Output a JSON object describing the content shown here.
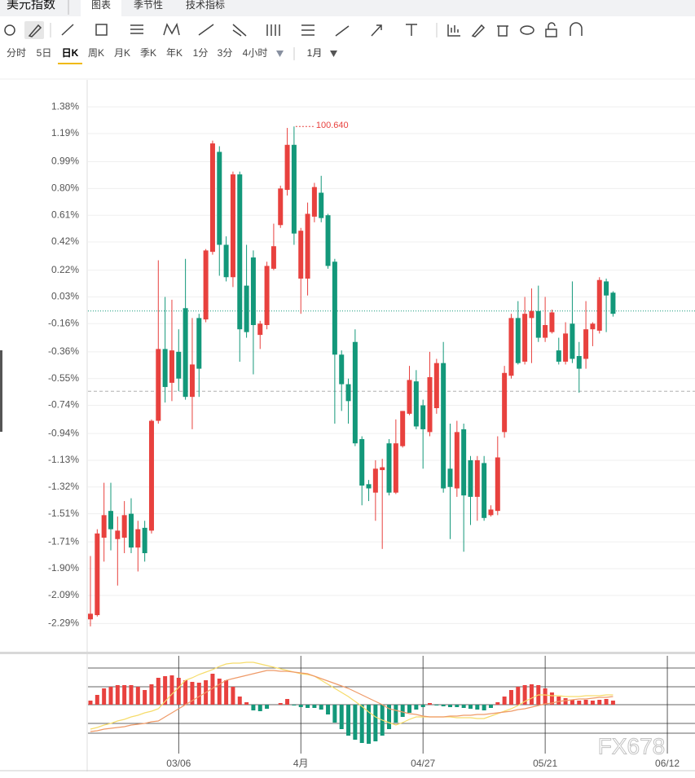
{
  "header": {
    "title": "美元指数",
    "tabs": [
      "图表",
      "季节性",
      "技术指标"
    ],
    "active_tab": 0
  },
  "periods": [
    "分时",
    "5日",
    "日K",
    "周K",
    "月K",
    "季K",
    "年K",
    "1分",
    "3分",
    "4小时"
  ],
  "active_period": 2,
  "range_selector": "1月",
  "watermark": "FX678",
  "chart_data": [
    {
      "type": "candlestick",
      "up_color": "#e8413e",
      "down_color": "#13987a",
      "ylim": [
        -2.49,
        1.56
      ],
      "yticks": [
        {
          "value": 1.38,
          "label": "1.38%"
        },
        {
          "value": 1.19,
          "label": "1.19%"
        },
        {
          "value": 0.99,
          "label": "0.99%"
        },
        {
          "value": 0.8,
          "label": "0.80%"
        },
        {
          "value": 0.61,
          "label": "0.61%"
        },
        {
          "value": 0.42,
          "label": "0.42%"
        },
        {
          "value": 0.22,
          "label": "0.22%"
        },
        {
          "value": 0.03,
          "label": "0.03%"
        },
        {
          "value": -0.16,
          "label": "-0.16%"
        },
        {
          "value": -0.36,
          "label": "-0.36%"
        },
        {
          "value": -0.55,
          "label": "-0.55%"
        },
        {
          "value": -0.74,
          "label": "-0.74%"
        },
        {
          "value": -0.94,
          "label": "-0.94%"
        },
        {
          "value": -1.13,
          "label": "-1.13%"
        },
        {
          "value": -1.32,
          "label": "-1.32%"
        },
        {
          "value": -1.51,
          "label": "-1.51%"
        },
        {
          "value": -1.71,
          "label": "-1.71%"
        },
        {
          "value": -1.9,
          "label": "-1.90%"
        },
        {
          "value": -2.09,
          "label": "-2.09%"
        },
        {
          "value": -2.29,
          "label": "-2.29%"
        }
      ],
      "grid": true,
      "hlines": [
        {
          "value": -0.07,
          "color": "#13987a"
        },
        {
          "value": -0.64,
          "color": "#b0b0b0"
        }
      ],
      "annotation": {
        "label": "100.640",
        "color": "#e8413e"
      },
      "open": [
        -2.26,
        -2.23,
        -1.68,
        -1.49,
        -1.69,
        -1.68,
        -1.51,
        -1.75,
        -1.61,
        -1.63,
        -0.85,
        -0.34,
        -0.58,
        -0.36,
        -0.05,
        -0.68,
        -0.12,
        -0.13,
        0.35,
        1.06,
        0.4,
        0.17,
        0.9,
        0.11,
        0.31,
        -0.24,
        -0.17,
        0.23,
        0.54,
        0.79,
        1.11,
        0.16,
        0.16,
        0.6,
        0.77,
        0.61,
        0.28,
        -0.38,
        -0.59,
        -0.29,
        -0.98,
        -1.3,
        -1.36,
        -1.2,
        -1.01,
        -1.36,
        -1.03,
        -0.8,
        -0.57,
        -0.74,
        -0.93,
        -0.76,
        -0.44,
        -1.19,
        -1.33,
        -0.91,
        -1.13,
        -1.39,
        -1.15,
        -1.52,
        -1.49,
        -0.93,
        -0.53,
        -0.12,
        -0.43,
        -0.12,
        -0.07,
        -0.26,
        -0.22,
        -0.35,
        -0.43,
        -0.16,
        -0.39,
        -0.41,
        -0.2,
        -0.21,
        0.14,
        0.06,
        null,
        null,
        null,
        null,
        null,
        null,
        null,
        null
      ],
      "high": [
        -1.81,
        -1.62,
        -1.29,
        -1.29,
        -1.53,
        -1.42,
        -1.4,
        -1.56,
        -1.56,
        -0.84,
        0.29,
        0.03,
        0.01,
        -0.2,
        0.3,
        -0.12,
        -0.09,
        0.37,
        1.14,
        1.1,
        0.46,
        0.92,
        0.92,
        0.4,
        0.36,
        -0.14,
        0.28,
        0.55,
        0.82,
        1.23,
        1.24,
        0.52,
        0.7,
        0.84,
        0.89,
        0.62,
        0.3,
        -0.35,
        -0.55,
        -0.2,
        -0.96,
        -1.27,
        -1.13,
        -1.12,
        -0.98,
        -0.84,
        -0.78,
        -0.46,
        -0.49,
        -0.7,
        -0.36,
        -0.41,
        -0.29,
        -0.87,
        -0.85,
        -0.87,
        -1.1,
        -1.1,
        -1.1,
        -1.45,
        -0.96,
        -0.46,
        -0.09,
        0.0,
        0.03,
        0.09,
        0.11,
        0.03,
        -0.06,
        -0.26,
        -0.15,
        0.14,
        -0.29,
        0.0,
        -0.15,
        0.17,
        0.16,
        0.07,
        null,
        null,
        null,
        null,
        null,
        null,
        null,
        null
      ],
      "low": [
        -2.31,
        -2.24,
        -1.85,
        -1.77,
        -2.02,
        -1.79,
        -1.79,
        -1.92,
        -1.85,
        -1.65,
        -0.87,
        -0.72,
        -0.71,
        -0.64,
        -0.7,
        -0.91,
        -0.68,
        -0.15,
        0.33,
        0.18,
        0.14,
        0.1,
        -0.43,
        -0.26,
        -0.52,
        -0.34,
        -0.2,
        0.22,
        0.52,
        0.75,
        0.4,
        -0.09,
        0.04,
        0.56,
        0.56,
        0.23,
        -0.87,
        -0.78,
        -0.87,
        -1.03,
        -1.45,
        -1.42,
        -1.56,
        -1.76,
        -1.38,
        -1.37,
        -1.04,
        -0.81,
        -0.91,
        -1.19,
        -0.96,
        -0.8,
        -1.36,
        -1.69,
        -1.39,
        -1.78,
        -1.59,
        -1.56,
        -1.56,
        -1.53,
        -1.52,
        -0.97,
        -0.55,
        -0.45,
        -0.45,
        -0.44,
        -0.29,
        -0.29,
        -0.23,
        -0.45,
        -0.45,
        -0.44,
        -0.65,
        -0.48,
        -0.32,
        -0.23,
        -0.22,
        -0.11,
        null,
        null,
        null,
        null,
        null,
        null,
        null,
        null
      ],
      "close": [
        -2.22,
        -1.65,
        -1.52,
        -1.62,
        -1.63,
        -1.52,
        -1.75,
        -1.62,
        -1.79,
        -0.85,
        -0.34,
        -0.61,
        -0.35,
        -0.55,
        -0.68,
        -0.45,
        -0.48,
        0.36,
        1.12,
        0.4,
        0.17,
        0.9,
        -0.2,
        -0.22,
        -0.17,
        -0.16,
        0.25,
        0.39,
        0.8,
        1.11,
        0.48,
        0.5,
        0.62,
        0.81,
        0.59,
        0.25,
        -0.38,
        -0.59,
        -0.71,
        -1.01,
        -1.31,
        -1.33,
        -1.19,
        -1.18,
        -1.36,
        -1.01,
        -0.78,
        -0.56,
        -0.89,
        -0.91,
        -0.54,
        -0.44,
        -1.33,
        -1.32,
        -0.93,
        -1.38,
        -1.39,
        -1.13,
        -1.54,
        -1.48,
        -1.11,
        -0.51,
        -0.12,
        -0.44,
        -0.09,
        -0.07,
        -0.26,
        -0.17,
        -0.08,
        -0.43,
        -0.23,
        -0.41,
        -0.48,
        -0.2,
        -0.16,
        0.15,
        0.04,
        -0.09,
        null,
        null,
        null,
        null,
        null,
        null,
        null,
        null
      ]
    },
    {
      "type": "macd",
      "ylim": [
        -0.55,
        0.55
      ],
      "categories": [
        null,
        null,
        null,
        null,
        null,
        null,
        null,
        null,
        null,
        null,
        null,
        null,
        null,
        "03/06",
        null,
        null,
        null,
        null,
        null,
        null,
        null,
        null,
        null,
        null,
        null,
        null,
        null,
        null,
        null,
        null,
        null,
        "4月",
        null,
        null,
        null,
        null,
        null,
        null,
        null,
        null,
        null,
        null,
        null,
        null,
        null,
        null,
        null,
        null,
        null,
        "04/27",
        null,
        null,
        null,
        null,
        null,
        null,
        null,
        null,
        null,
        null,
        null,
        null,
        null,
        null,
        null,
        null,
        null,
        "05/21",
        null,
        null,
        null,
        null,
        null,
        null,
        null,
        null,
        null,
        null,
        null,
        null,
        null,
        null,
        null,
        null,
        null,
        "06/12"
      ],
      "histogram": {
        "up_color": "#e8413e",
        "down_color": "#13987a",
        "values": [
          0.05,
          0.12,
          0.2,
          0.22,
          0.24,
          0.24,
          0.24,
          0.22,
          0.18,
          0.25,
          0.33,
          0.35,
          0.36,
          0.33,
          0.3,
          0.28,
          0.27,
          0.3,
          0.38,
          0.32,
          0.3,
          0.22,
          0.1,
          0.03,
          -0.07,
          -0.08,
          -0.05,
          0.0,
          0.02,
          0.07,
          -0.01,
          -0.03,
          -0.04,
          -0.04,
          -0.06,
          -0.12,
          -0.22,
          -0.3,
          -0.38,
          -0.43,
          -0.47,
          -0.48,
          -0.45,
          -0.38,
          -0.3,
          -0.22,
          -0.15,
          -0.1,
          -0.06,
          -0.03,
          0.02,
          -0.01,
          -0.02,
          -0.03,
          -0.03,
          -0.04,
          -0.05,
          -0.06,
          -0.07,
          -0.04,
          0.03,
          0.1,
          0.18,
          0.22,
          0.24,
          0.25,
          0.24,
          0.2,
          0.15,
          0.1,
          0.08,
          0.06,
          0.05,
          0.06,
          0.05,
          0.06,
          0.07,
          0.05,
          null,
          null,
          null,
          null,
          null,
          null,
          null,
          null
        ]
      },
      "lines": [
        {
          "color": "#f6dc6a",
          "values": [
            -0.3,
            -0.28,
            -0.25,
            -0.23,
            -0.2,
            -0.18,
            -0.15,
            -0.13,
            -0.1,
            -0.08,
            -0.05,
            0.04,
            0.13,
            0.21,
            0.3,
            0.33,
            0.37,
            0.4,
            0.43,
            0.47,
            0.5,
            0.51,
            0.51,
            0.52,
            0.52,
            0.5,
            0.48,
            0.46,
            0.44,
            0.42,
            0.4,
            0.38,
            0.37,
            0.35,
            0.3,
            0.25,
            0.2,
            0.15,
            0.1,
            0.04,
            -0.02,
            -0.09,
            -0.15,
            -0.19,
            -0.22,
            -0.25,
            -0.22,
            -0.18,
            -0.15,
            -0.15,
            -0.15,
            -0.15,
            -0.15,
            -0.15,
            -0.16,
            -0.16,
            -0.16,
            -0.17,
            -0.17,
            -0.14,
            -0.11,
            -0.08,
            -0.05,
            -0.01,
            0.04,
            0.08,
            0.12,
            0.12,
            0.11,
            0.11,
            0.1,
            0.1,
            0.1,
            0.11,
            0.11,
            0.11,
            0.12,
            0.12,
            null,
            null,
            null,
            null,
            null,
            null,
            null,
            null
          ]
        },
        {
          "color": "#ef9a68",
          "values": [
            -0.33,
            -0.32,
            -0.3,
            -0.29,
            -0.28,
            -0.27,
            -0.25,
            -0.24,
            -0.23,
            -0.21,
            -0.2,
            -0.15,
            -0.1,
            -0.05,
            0.0,
            0.05,
            0.1,
            0.15,
            0.2,
            0.25,
            0.3,
            0.32,
            0.34,
            0.36,
            0.38,
            0.4,
            0.42,
            0.42,
            0.41,
            0.41,
            0.4,
            0.39,
            0.38,
            0.35,
            0.32,
            0.29,
            0.26,
            0.23,
            0.2,
            0.16,
            0.12,
            0.08,
            0.04,
            0.0,
            -0.05,
            -0.07,
            -0.09,
            -0.11,
            -0.12,
            -0.14,
            -0.15,
            -0.15,
            -0.15,
            -0.14,
            -0.14,
            -0.13,
            -0.13,
            -0.12,
            -0.12,
            -0.11,
            -0.1,
            -0.09,
            -0.08,
            -0.06,
            -0.05,
            -0.03,
            -0.01,
            0.01,
            0.02,
            0.04,
            0.05,
            0.06,
            0.07,
            0.07,
            0.08,
            0.09,
            0.09,
            0.1,
            null,
            null,
            null,
            null,
            null,
            null,
            null,
            null
          ]
        }
      ]
    }
  ]
}
